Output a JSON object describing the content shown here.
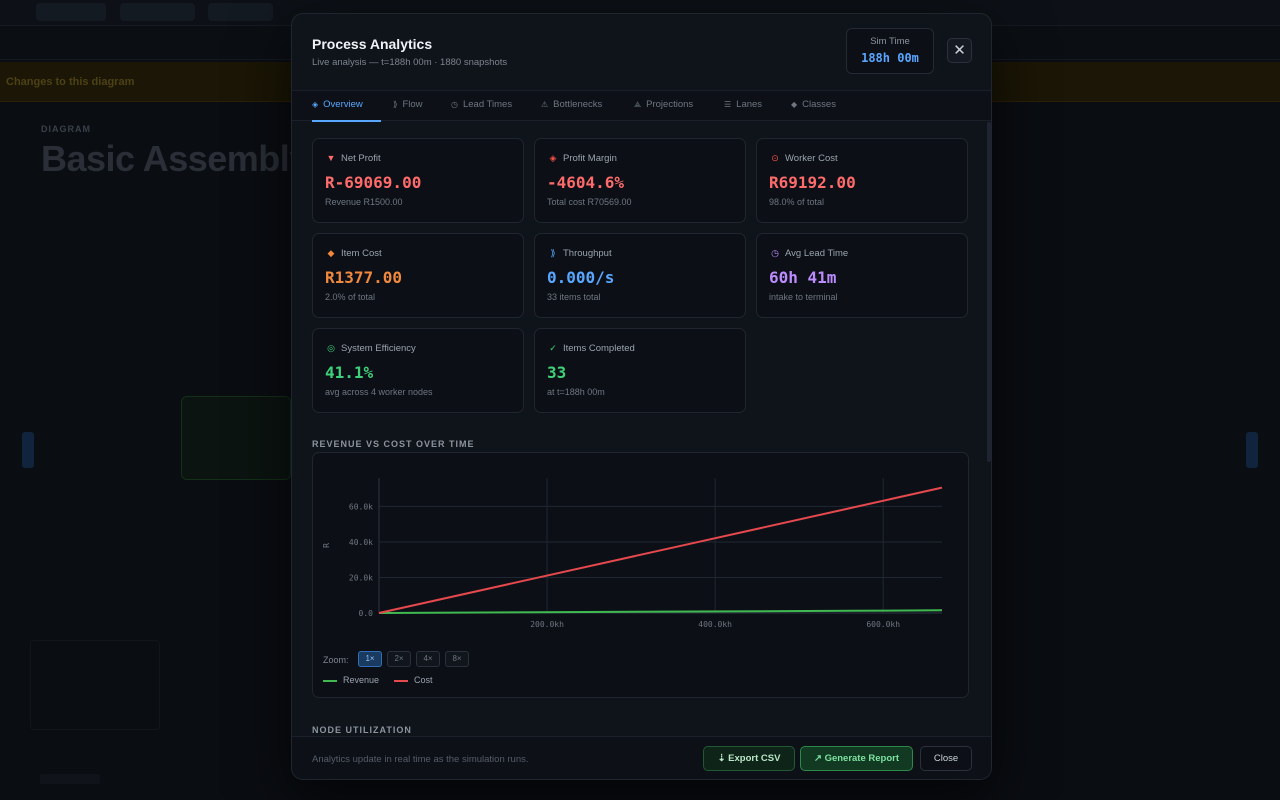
{
  "background": {
    "breadcrumb": "DIAGRAM",
    "title": "Basic Assembly Line",
    "banner": "Changes to this diagram"
  },
  "modal": {
    "title": "Process Analytics",
    "subtitle": "Live analysis — t=188h 00m · 1880 snapshots",
    "sim_time_label": "Sim Time",
    "sim_time_value": "188h 00m",
    "close_glyph": "✕"
  },
  "tabs": [
    {
      "label": "Overview",
      "icon": "◈",
      "active": true
    },
    {
      "label": "Flow",
      "icon": "⟫",
      "active": false
    },
    {
      "label": "Lead Times",
      "icon": "◷",
      "active": false
    },
    {
      "label": "Bottlenecks",
      "icon": "⚠",
      "active": false
    },
    {
      "label": "Projections",
      "icon": "⟁",
      "active": false
    },
    {
      "label": "Lanes",
      "icon": "☰",
      "active": false
    },
    {
      "label": "Classes",
      "icon": "◆",
      "active": false
    }
  ],
  "cards": [
    {
      "label": "Net Profit",
      "icon": "▼",
      "value": "R-69069.00",
      "note": "Revenue R1500.00",
      "color": "#ff6b6b",
      "icon_color": "#ff6b6b"
    },
    {
      "label": "Profit Margin",
      "icon": "◈",
      "value": "-4604.6%",
      "note": "Total cost R70569.00",
      "color": "#ff6b6b",
      "icon_color": "#f85149"
    },
    {
      "label": "Worker Cost",
      "icon": "⊙",
      "value": "R69192.00",
      "note": "98.0% of total",
      "color": "#ff6b6b",
      "icon_color": "#f85149"
    },
    {
      "label": "Item Cost",
      "icon": "◆",
      "value": "R1377.00",
      "note": "2.0% of total",
      "color": "#f0883e",
      "icon_color": "#f0883e"
    },
    {
      "label": "Throughput",
      "icon": "⟫",
      "value": "0.000/s",
      "note": "33 items total",
      "color": "#58a6ff",
      "icon_color": "#58a6ff"
    },
    {
      "label": "Avg Lead Time",
      "icon": "◷",
      "value": "60h 41m",
      "note": "intake to terminal",
      "color": "#bc8cff",
      "icon_color": "#bc8cff"
    },
    {
      "label": "System Efficiency",
      "icon": "◎",
      "value": "41.1%",
      "note": "avg across 4 worker nodes",
      "color": "#3fd17a",
      "icon_color": "#3fd17a"
    },
    {
      "label": "Items Completed",
      "icon": "✓",
      "value": "33",
      "note": "at t=188h 00m",
      "color": "#3fd17a",
      "icon_color": "#3fd17a"
    }
  ],
  "sections": {
    "revenue_cost": "REVENUE VS COST OVER TIME",
    "node_utilization": "NODE UTILIZATION"
  },
  "zoom": {
    "label": "Zoom:",
    "options": [
      "1×",
      "2×",
      "4×",
      "8×"
    ],
    "selected": "1×"
  },
  "chart_data": {
    "type": "line",
    "title": "REVENUE VS COST OVER TIME",
    "xlabel": "",
    "ylabel": "R",
    "x_tick_labels": [
      "200.0kh",
      "400.0kh",
      "600.0kh"
    ],
    "y_tick_labels": [
      "0.0",
      "20.0k",
      "40.0k",
      "60.0k"
    ],
    "x_ticks": [
      200,
      400,
      600
    ],
    "y_ticks": [
      0,
      20000,
      40000,
      60000
    ],
    "xlim": [
      0,
      670
    ],
    "ylim": [
      0,
      76000
    ],
    "grid": true,
    "legend_position": "bottom-left",
    "series": [
      {
        "name": "Revenue",
        "color": "#3fb950",
        "x": [
          0,
          188,
          376,
          564,
          670
        ],
        "y": [
          0,
          420,
          840,
          1260,
          1500
        ]
      },
      {
        "name": "Cost",
        "color": "#e5484d",
        "x": [
          0,
          188,
          376,
          564,
          670
        ],
        "y": [
          0,
          19800,
          39600,
          59400,
          70569
        ]
      }
    ]
  },
  "footer": {
    "note": "Analytics update in real time as the simulation runs.",
    "export_label": "⇣ Export CSV",
    "report_label": "↗ Generate Report",
    "close_label": "Close"
  }
}
